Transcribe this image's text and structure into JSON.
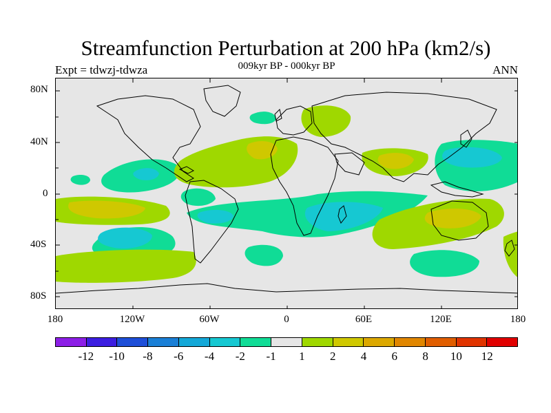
{
  "title": "Streamfunction Perturbation at 200 hPa (km2/s)",
  "subtitle": "009kyr BP - 000kyr BP",
  "left_label": "Expt = tdwzj-tdwza",
  "right_label": "ANN",
  "lat_ticks": [
    "80N",
    "40N",
    "0",
    "40S",
    "80S"
  ],
  "lon_ticks": [
    "180",
    "120W",
    "60W",
    "0",
    "60E",
    "120E",
    "180"
  ],
  "colorbar": {
    "colors": [
      "#8c1fe6",
      "#3c1ee0",
      "#1e4fd8",
      "#1a7fd6",
      "#14a8d8",
      "#16c8d2",
      "#10dc96",
      "#e6e6e6",
      "#9fd800",
      "#cfc800",
      "#dca800",
      "#e08600",
      "#e05e00",
      "#e03400",
      "#e00000"
    ],
    "labels": [
      "-12",
      "-10",
      "-8",
      "-6",
      "-4",
      "-2",
      "-1",
      "1",
      "2",
      "4",
      "6",
      "8",
      "10",
      "12"
    ]
  },
  "colors": {
    "neg1": "#10dc96",
    "neg2": "#16c8d2",
    "neg4": "#14a8d8",
    "pos1": "#9fd800",
    "pos2": "#cfc800",
    "neutral": "#e6e6e6"
  }
}
